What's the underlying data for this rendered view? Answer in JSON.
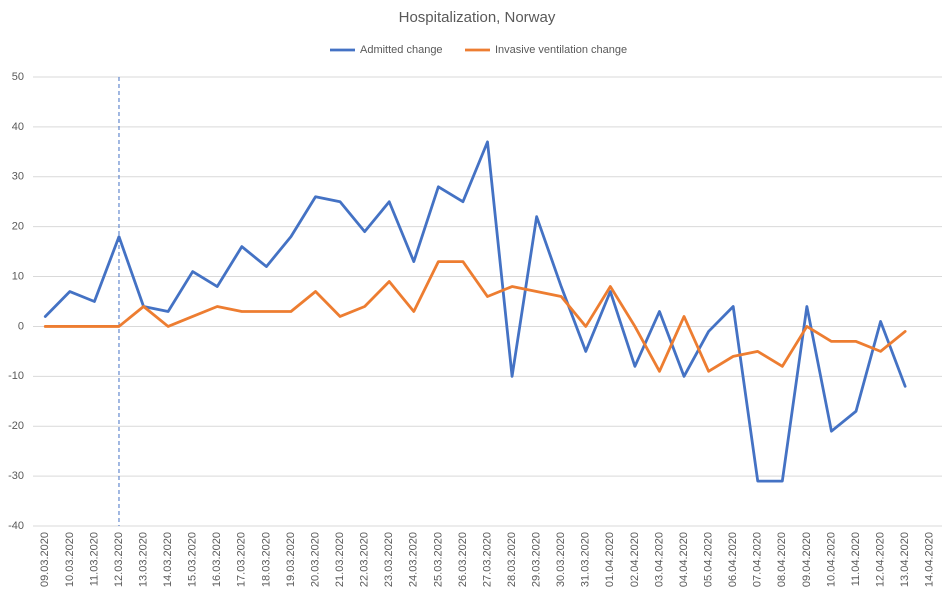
{
  "chart_data": {
    "type": "line",
    "title": "Hospitalization, Norway",
    "categories": [
      "09.03.2020",
      "10.03.2020",
      "11.03.2020",
      "12.03.2020",
      "13.03.2020",
      "14.03.2020",
      "15.03.2020",
      "16.03.2020",
      "17.03.2020",
      "18.03.2020",
      "19.03.2020",
      "20.03.2020",
      "21.03.2020",
      "22.03.2020",
      "23.03.2020",
      "24.03.2020",
      "25.03.2020",
      "26.03.2020",
      "27.03.2020",
      "28.03.2020",
      "29.03.2020",
      "30.03.2020",
      "31.03.2020",
      "01.04.2020",
      "02.04.2020",
      "03.04.2020",
      "04.04.2020",
      "05.04.2020",
      "06.04.2020",
      "07.04.2020",
      "08.04.2020",
      "09.04.2020",
      "10.04.2020",
      "11.04.2020",
      "12.04.2020",
      "13.04.2020",
      "14.04.2020"
    ],
    "series": [
      {
        "name": "Admitted change",
        "color": "#4472c4",
        "values": [
          2,
          7,
          5,
          18,
          4,
          3,
          11,
          8,
          16,
          12,
          18,
          26,
          25,
          19,
          25,
          13,
          28,
          25,
          37,
          -10,
          22,
          8,
          -5,
          7,
          -8,
          3,
          -10,
          -1,
          4,
          -31,
          -31,
          4,
          -21,
          -17,
          1,
          -12,
          null
        ]
      },
      {
        "name": "Invasive ventilation change",
        "color": "#ed7d31",
        "values": [
          0,
          0,
          0,
          0,
          4,
          0,
          2,
          4,
          3,
          3,
          3,
          7,
          2,
          4,
          9,
          3,
          13,
          13,
          6,
          8,
          7,
          6,
          0,
          8,
          0,
          -9,
          2,
          -9,
          -6,
          -5,
          -8,
          0,
          -3,
          -3,
          -5,
          -1,
          null
        ]
      }
    ],
    "ylim": [
      -40,
      50
    ],
    "yticks": [
      -40,
      -30,
      -20,
      -10,
      0,
      10,
      20,
      30,
      40,
      50
    ],
    "grid": true,
    "legend": "top",
    "reference_line": {
      "x": "12.03.2020",
      "style": "dashed",
      "color": "#4472c4"
    }
  }
}
